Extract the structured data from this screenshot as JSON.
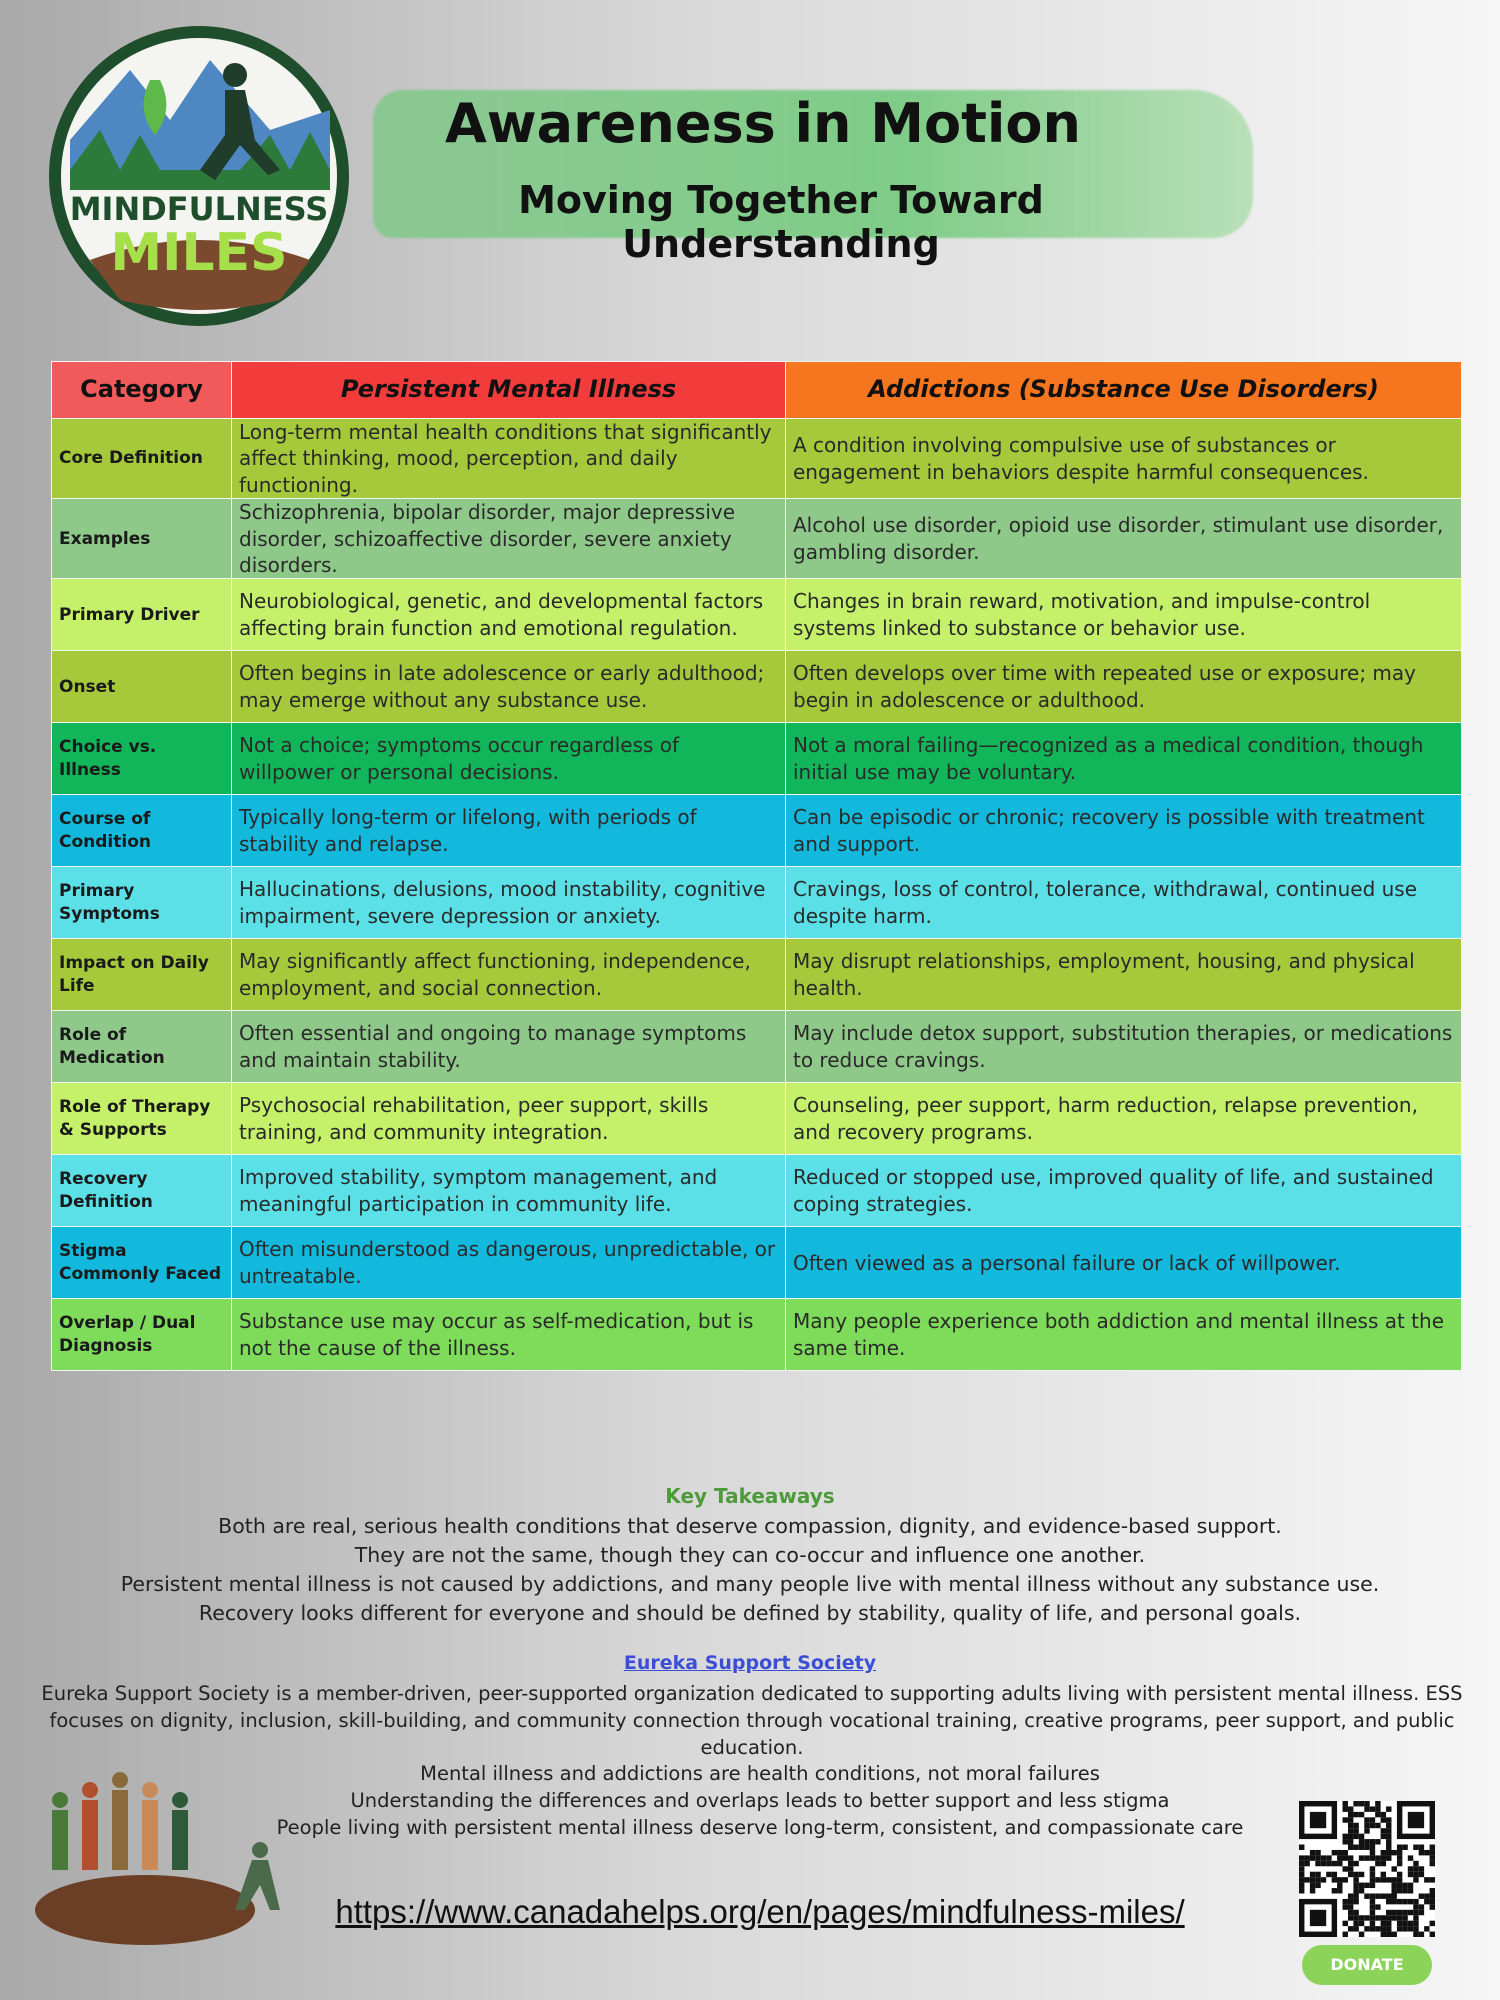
{
  "header": {
    "title": "Awareness in Motion",
    "subtitle": "Moving Together Toward Understanding",
    "logo_top": "MINDFULNESS",
    "logo_bottom": "MILES"
  },
  "table": {
    "header": [
      "Category",
      "Persistent Mental Illness",
      "Addictions (Substance Use Disorders)"
    ],
    "rows": [
      [
        "Core Definition",
        "Long-term mental health conditions that significantly affect thinking, mood, perception, and daily functioning.",
        "A condition involving compulsive use of substances or engagement in behaviors despite harmful consequences."
      ],
      [
        "Examples",
        "Schizophrenia, bipolar disorder, major depressive disorder, schizoaffective disorder, severe anxiety disorders.",
        "Alcohol use disorder, opioid use disorder, stimulant use disorder, gambling disorder."
      ],
      [
        "Primary Driver",
        "Neurobiological, genetic, and developmental factors affecting brain function and emotional regulation.",
        "Changes in brain reward, motivation, and impulse-control systems linked to substance or behavior use."
      ],
      [
        "Onset",
        "Often begins in late adolescence or early adulthood; may emerge without any substance use.",
        "Often develops over time with repeated use or exposure; may begin in adolescence or adulthood."
      ],
      [
        "Choice vs. Illness",
        "Not a choice; symptoms occur regardless of willpower or personal decisions.",
        "Not a moral failing—recognized as a medical condition, though initial use may be voluntary."
      ],
      [
        "Course of Condition",
        "Typically long-term or lifelong, with periods of stability and relapse.",
        "Can be episodic or chronic; recovery is possible with treatment and support."
      ],
      [
        "Primary Symptoms",
        "Hallucinations, delusions, mood instability, cognitive impairment, severe depression or anxiety.",
        "Cravings, loss of control, tolerance, withdrawal, continued use despite harm."
      ],
      [
        "Impact on Daily Life",
        "May significantly affect functioning, independence, employment, and social connection.",
        "May disrupt relationships, employment, housing, and physical health."
      ],
      [
        "Role of Medication",
        "Often essential and ongoing to manage symptoms and maintain stability.",
        "May include detox support, substitution therapies, or medications to reduce cravings."
      ],
      [
        "Role of Therapy & Supports",
        "Psychosocial rehabilitation, peer support, skills training, and community integration.",
        "Counseling, peer support, harm reduction, relapse prevention, and recovery programs."
      ],
      [
        "Recovery Definition",
        "Improved stability, symptom management, and meaningful participation in community life.",
        "Reduced or stopped use, improved quality of life, and sustained coping strategies."
      ],
      [
        "Stigma Commonly Faced",
        "Often misunderstood as dangerous, unpredictable, or untreatable.",
        "Often viewed as a personal failure or lack of willpower."
      ],
      [
        "Overlap / Dual Diagnosis",
        "Substance use may occur as self-medication, but is not the cause of the illness.",
        "Many people experience both addiction and mental illness at the same time."
      ]
    ]
  },
  "takeaways": {
    "title": "Key Takeaways",
    "lines": [
      "Both are real, serious health conditions that deserve compassion, dignity, and evidence-based support.",
      "They are not the same, though they can co-occur and influence one another.",
      "Persistent mental illness is not caused by addictions, and many people live with mental illness without any substance use.",
      "Recovery looks different for everyone and should be defined by stability, quality of life, and personal goals."
    ]
  },
  "society": {
    "link": "Eureka Support Society",
    "description": "Eureka Support Society is a member-driven, peer-supported organization dedicated to supporting adults living with persistent mental illness. ESS focuses on dignity, inclusion, skill-building, and community connection through vocational training, creative programs, peer support, and public education."
  },
  "closing": {
    "lines": [
      "Mental illness and addictions are health conditions, not moral failures",
      "Understanding the differences and overlaps leads to better support and less stigma",
      "People living with persistent mental illness deserve long-term, consistent, and compassionate care"
    ]
  },
  "url": "https://www.canadahelps.org/en/pages/mindfulness-miles/",
  "donate": "DONATE"
}
